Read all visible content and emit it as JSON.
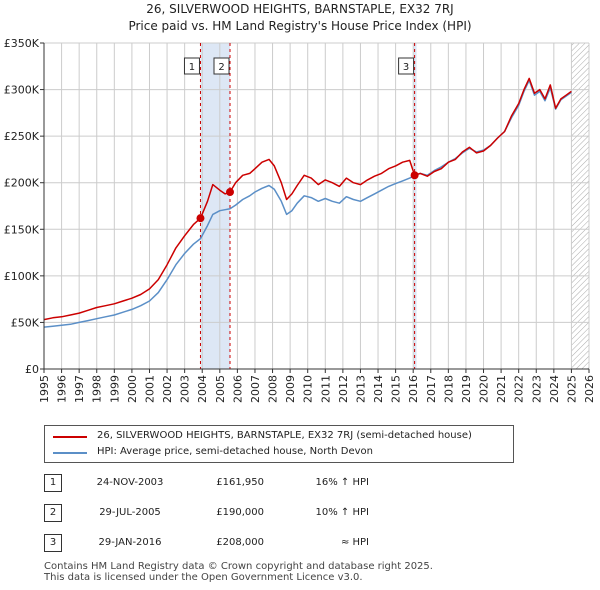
{
  "header": {
    "title_line1": "26, SILVERWOOD HEIGHTS, BARNSTAPLE, EX32 7RJ",
    "title_line2": "Price paid vs. HM Land Registry's House Price Index (HPI)"
  },
  "chart_data": {
    "type": "line",
    "title": "26, SILVERWOOD HEIGHTS, BARNSTAPLE, EX32 7RJ — Price paid vs. HM Land Registry's House Price Index (HPI)",
    "xlabel": "",
    "ylabel": "",
    "xlim": [
      1995,
      2026
    ],
    "ylim": [
      0,
      350000
    ],
    "grid": true,
    "y_ticks": [
      0,
      50000,
      100000,
      150000,
      200000,
      250000,
      300000,
      350000
    ],
    "y_tick_labels": [
      "£0",
      "£50K",
      "£100K",
      "£150K",
      "£200K",
      "£250K",
      "£300K",
      "£350K"
    ],
    "x_ticks": [
      1995,
      1996,
      1997,
      1998,
      1999,
      2000,
      2001,
      2002,
      2003,
      2004,
      2005,
      2006,
      2007,
      2008,
      2009,
      2010,
      2011,
      2012,
      2013,
      2014,
      2015,
      2016,
      2017,
      2018,
      2019,
      2020,
      2021,
      2022,
      2023,
      2024,
      2025,
      2026
    ],
    "x_tick_labels": [
      "1995",
      "1996",
      "1997",
      "1998",
      "1999",
      "2000",
      "2001",
      "2002",
      "2003",
      "2004",
      "2005",
      "2006",
      "2007",
      "2008",
      "2009",
      "2010",
      "2011",
      "2012",
      "2013",
      "2014",
      "2015",
      "2016",
      "2017",
      "2018",
      "2019",
      "2020",
      "2021",
      "2022",
      "2023",
      "2024",
      "2025",
      "2026"
    ],
    "forecast_from": 2025.0,
    "colors": {
      "property": "#cc0000",
      "hpi": "#5b8fc7",
      "marker_line": "#cc0000",
      "shade": "#dde7f5",
      "hatch": "#aaaaaa"
    },
    "series": [
      {
        "name": "26, SILVERWOOD HEIGHTS, BARNSTAPLE, EX32 7RJ (semi-detached house)",
        "color": "#cc0000",
        "x": [
          1995.0,
          1995.5,
          1996.0,
          1996.5,
          1997.0,
          1997.5,
          1998.0,
          1998.5,
          1999.0,
          1999.5,
          2000.0,
          2000.5,
          2001.0,
          2001.5,
          2002.0,
          2002.5,
          2003.0,
          2003.5,
          2003.9,
          2004.3,
          2004.6,
          2005.0,
          2005.3,
          2005.58,
          2005.9,
          2006.3,
          2006.7,
          2007.0,
          2007.4,
          2007.8,
          2008.1,
          2008.5,
          2008.8,
          2009.1,
          2009.4,
          2009.8,
          2010.2,
          2010.6,
          2011.0,
          2011.4,
          2011.8,
          2012.2,
          2012.6,
          2013.0,
          2013.4,
          2013.8,
          2014.2,
          2014.6,
          2015.0,
          2015.4,
          2015.8,
          2016.08,
          2016.4,
          2016.8,
          2017.2,
          2017.6,
          2018.0,
          2018.4,
          2018.8,
          2019.2,
          2019.6,
          2020.0,
          2020.4,
          2020.8,
          2021.2,
          2021.6,
          2022.0,
          2022.3,
          2022.6,
          2022.9,
          2023.2,
          2023.5,
          2023.8,
          2024.1,
          2024.4,
          2024.7,
          2025.0
        ],
        "values": [
          53000,
          55000,
          56000,
          58000,
          60000,
          63000,
          66000,
          68000,
          70000,
          73000,
          76000,
          80000,
          86000,
          96000,
          112000,
          130000,
          143000,
          155000,
          161950,
          180000,
          198000,
          192000,
          188000,
          190000,
          200000,
          208000,
          210000,
          215000,
          222000,
          225000,
          218000,
          200000,
          182000,
          188000,
          197000,
          208000,
          205000,
          198000,
          203000,
          200000,
          196000,
          205000,
          200000,
          198000,
          203000,
          207000,
          210000,
          215000,
          218000,
          222000,
          224000,
          208000,
          210000,
          207000,
          212000,
          215000,
          222000,
          225000,
          233000,
          238000,
          232000,
          234000,
          240000,
          248000,
          255000,
          272000,
          285000,
          300000,
          312000,
          296000,
          300000,
          290000,
          305000,
          280000,
          290000,
          294000,
          298000
        ]
      },
      {
        "name": "HPI: Average price, semi-detached house, North Devon",
        "color": "#5b8fc7",
        "x": [
          1995.0,
          1995.5,
          1996.0,
          1996.5,
          1997.0,
          1997.5,
          1998.0,
          1998.5,
          1999.0,
          1999.5,
          2000.0,
          2000.5,
          2001.0,
          2001.5,
          2002.0,
          2002.5,
          2003.0,
          2003.5,
          2003.9,
          2004.3,
          2004.6,
          2005.0,
          2005.3,
          2005.58,
          2005.9,
          2006.3,
          2006.7,
          2007.0,
          2007.4,
          2007.8,
          2008.1,
          2008.5,
          2008.8,
          2009.1,
          2009.4,
          2009.8,
          2010.2,
          2010.6,
          2011.0,
          2011.4,
          2011.8,
          2012.2,
          2012.6,
          2013.0,
          2013.4,
          2013.8,
          2014.2,
          2014.6,
          2015.0,
          2015.4,
          2015.8,
          2016.08,
          2016.4,
          2016.8,
          2017.2,
          2017.6,
          2018.0,
          2018.4,
          2018.8,
          2019.2,
          2019.6,
          2020.0,
          2020.4,
          2020.8,
          2021.2,
          2021.6,
          2022.0,
          2022.3,
          2022.6,
          2022.9,
          2023.2,
          2023.5,
          2023.8,
          2024.1,
          2024.4,
          2024.7,
          2025.0
        ],
        "values": [
          45000,
          46000,
          47000,
          48000,
          50000,
          52000,
          54000,
          56000,
          58000,
          61000,
          64000,
          68000,
          73000,
          82000,
          96000,
          112000,
          124000,
          134000,
          140000,
          154000,
          166000,
          170000,
          171000,
          172000,
          176000,
          182000,
          186000,
          190000,
          194000,
          197000,
          193000,
          180000,
          166000,
          170000,
          178000,
          186000,
          184000,
          180000,
          183000,
          180000,
          178000,
          185000,
          182000,
          180000,
          184000,
          188000,
          192000,
          196000,
          199000,
          202000,
          205000,
          208000,
          210000,
          208000,
          213000,
          217000,
          222000,
          226000,
          232000,
          237000,
          233000,
          235000,
          240000,
          248000,
          255000,
          270000,
          283000,
          298000,
          310000,
          294000,
          298000,
          288000,
          302000,
          279000,
          289000,
          293000,
          297000
        ]
      }
    ],
    "sales": [
      {
        "label": "1",
        "x": 2003.9,
        "price": 161950
      },
      {
        "label": "2",
        "x": 2005.58,
        "price": 190000
      },
      {
        "label": "3",
        "x": 2016.08,
        "price": 208000
      }
    ]
  },
  "legend": {
    "property_label": "26, SILVERWOOD HEIGHTS, BARNSTAPLE, EX32 7RJ (semi-detached house)",
    "hpi_label": "HPI: Average price, semi-detached house, North Devon"
  },
  "transactions": [
    {
      "num": "1",
      "date": "24-NOV-2003",
      "price": "£161,950",
      "hpi": "16% ↑ HPI"
    },
    {
      "num": "2",
      "date": "29-JUL-2005",
      "price": "£190,000",
      "hpi": "10% ↑ HPI"
    },
    {
      "num": "3",
      "date": "29-JAN-2016",
      "price": "£208,000",
      "hpi": "≈ HPI"
    }
  ],
  "footer": {
    "line1": "Contains HM Land Registry data © Crown copyright and database right 2025.",
    "line2": "This data is licensed under the Open Government Licence v3.0."
  }
}
